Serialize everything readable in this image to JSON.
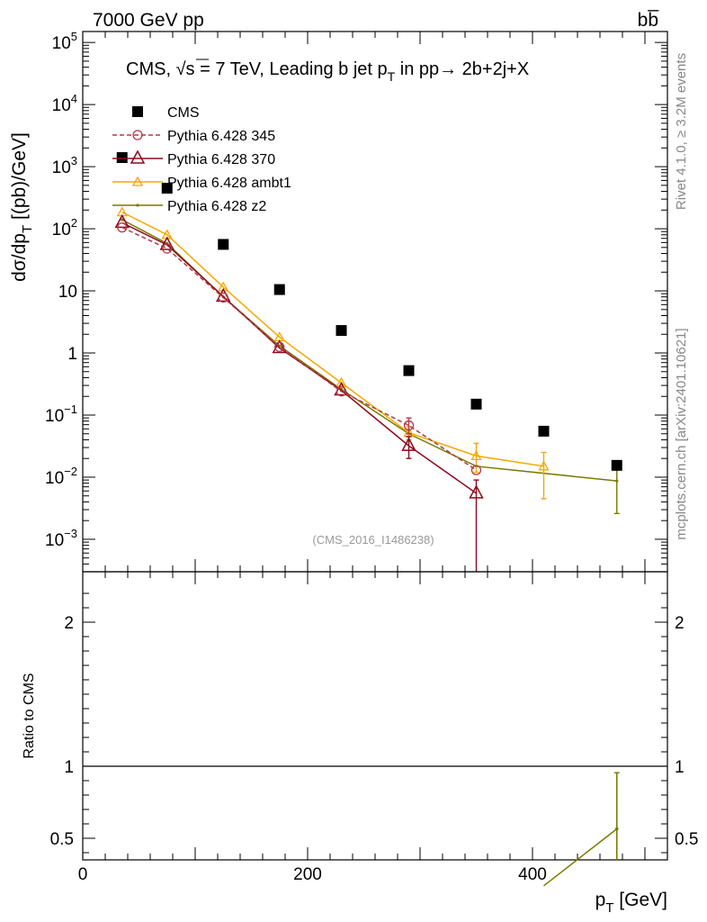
{
  "header": {
    "left": "7000 GeV pp",
    "right": "bb̅"
  },
  "side_labels": {
    "rivet": "Rivet 4.1.0, ≥ 3.2M events",
    "mcplots": "mcplots.cern.ch [arXiv:2401.10621]"
  },
  "chart_data": [
    {
      "type": "scatter",
      "title": "CMS, √s = 7 TeV, Leading b jet p_T in pp→ 2b+2j+X",
      "title_parts": {
        "pre": "CMS, ",
        "sqrt": "√",
        "s_eq": "s = 7 TeV, Leading b jet p",
        "sub": "T",
        "post": " in pp→  2b+2j+X"
      },
      "ylabel": "dσ/dp_T [(pb)/GeV]",
      "ylabel_parts": {
        "pre": "dσ/dp",
        "sub": "T",
        "post": " [(pb)/GeV]"
      },
      "yscale": "log",
      "ylim": [
        0.0003,
        150000
      ],
      "xlim": [
        0,
        520
      ],
      "watermark": "(CMS_2016_I1486238)",
      "y_ticks": [
        {
          "v": 0.001,
          "base": "10",
          "exp": "−3"
        },
        {
          "v": 0.01,
          "base": "10",
          "exp": "−2"
        },
        {
          "v": 0.1,
          "base": "10",
          "exp": "−1"
        },
        {
          "v": 1,
          "base": "1",
          "exp": ""
        },
        {
          "v": 10,
          "base": "10",
          "exp": ""
        },
        {
          "v": 100,
          "base": "10",
          "exp": "2"
        },
        {
          "v": 1000,
          "base": "10",
          "exp": "3"
        },
        {
          "v": 10000,
          "base": "10",
          "exp": "4"
        },
        {
          "v": 100000,
          "base": "10",
          "exp": "5"
        }
      ],
      "series": [
        {
          "name": "CMS",
          "style": "data",
          "color": "#000000",
          "x": [
            35,
            75,
            125,
            175,
            230,
            290,
            350,
            410,
            475
          ],
          "y": [
            1400,
            450,
            56,
            10.5,
            2.3,
            0.52,
            0.15,
            0.055,
            0.0155
          ]
        },
        {
          "name": "Pythia 6.428 345",
          "style": "circle-dashed",
          "color": "#b03a48",
          "x": [
            35,
            75,
            125,
            175,
            230,
            290,
            350
          ],
          "y": [
            105,
            48,
            7.8,
            1.25,
            0.24,
            0.068,
            0.013
          ],
          "err_lo": [
            0,
            0,
            0,
            0,
            0,
            0.05,
            0
          ],
          "err_hi": [
            0,
            0,
            0,
            0,
            0,
            0.09,
            0
          ]
        },
        {
          "name": "Pythia 6.428 370",
          "style": "triangle-open",
          "color": "#8b0a1e",
          "x": [
            35,
            75,
            125,
            175,
            230,
            290,
            350
          ],
          "y": [
            125,
            55,
            8.1,
            1.2,
            0.25,
            0.032,
            0.0055
          ],
          "err_lo": [
            0,
            0,
            0,
            0,
            0,
            0.02,
            0.0001
          ],
          "err_hi": [
            0,
            0,
            0,
            0,
            0,
            0.045,
            0.009
          ]
        },
        {
          "name": "Pythia 6.428 ambt1",
          "style": "triangle-orange",
          "color": "#f5a800",
          "x": [
            35,
            75,
            125,
            175,
            230,
            290,
            350,
            410
          ],
          "y": [
            185,
            80,
            11.5,
            1.8,
            0.33,
            0.052,
            0.022,
            0.015
          ],
          "err_lo": [
            0,
            0,
            0,
            0,
            0,
            0.04,
            0.012,
            0.0045
          ],
          "err_hi": [
            0,
            0,
            0,
            0,
            0,
            0.065,
            0.035,
            0.025
          ]
        },
        {
          "name": "Pythia 6.428 z2",
          "style": "dot-olive",
          "color": "#7a7a00",
          "x": [
            35,
            75,
            125,
            175,
            230,
            290,
            350,
            475
          ],
          "y": [
            140,
            58,
            8.0,
            1.3,
            0.26,
            0.05,
            0.015,
            0.0087
          ],
          "err_lo": [
            0,
            0,
            0,
            0,
            0,
            0,
            0,
            0.0026
          ],
          "err_hi": [
            0,
            0,
            0,
            0,
            0,
            0,
            0,
            0.016
          ]
        }
      ]
    },
    {
      "type": "line",
      "ylabel": "Ratio to CMS",
      "xlabel": "p_T [GeV]",
      "xlabel_parts": {
        "pre": "p",
        "sub": "T",
        "post": " [GeV]"
      },
      "ylim": [
        0.35,
        2.35
      ],
      "xlim": [
        0,
        520
      ],
      "x_ticks": [
        0,
        200,
        400
      ],
      "y_ticks": [
        0.5,
        1,
        2
      ],
      "reference": 1,
      "series": [
        {
          "name": "Pythia 6.428 z2",
          "color": "#7a7a00",
          "x": [
            410,
            475
          ],
          "y": [
            0.17,
            0.565
          ],
          "err_lo": [
            0,
            0.19
          ],
          "err_hi": [
            0,
            0.955
          ]
        }
      ]
    }
  ]
}
